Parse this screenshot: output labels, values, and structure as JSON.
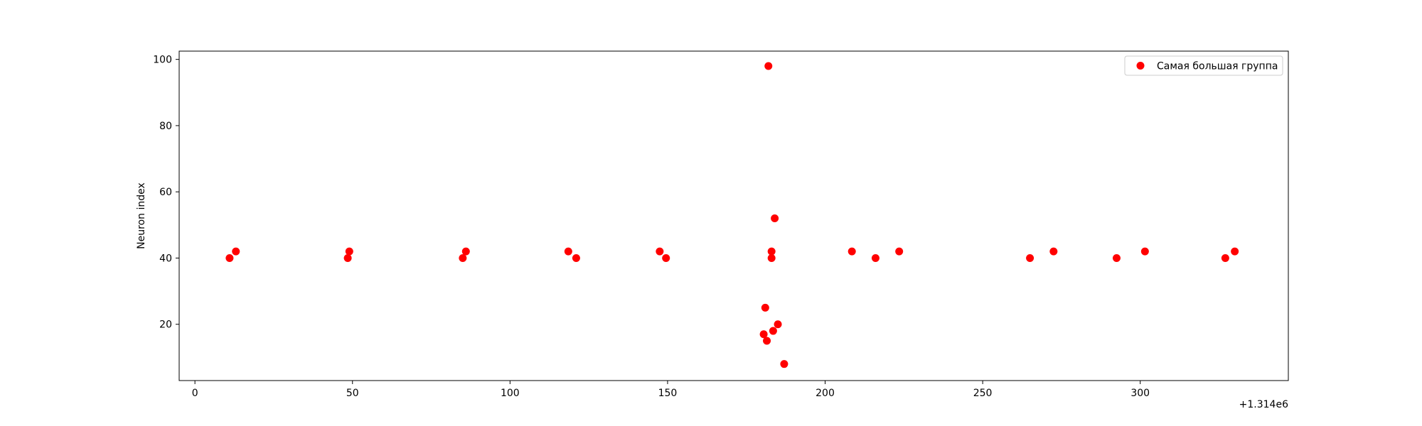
{
  "chart_data": {
    "type": "scatter",
    "title": "",
    "xlabel": "",
    "ylabel": "Neuron index",
    "x_offset_label": "+1.314e6",
    "xlim": [
      -5,
      347
    ],
    "ylim": [
      3,
      102.5
    ],
    "x_ticks": [
      0,
      50,
      100,
      150,
      200,
      250,
      300
    ],
    "y_ticks": [
      20,
      40,
      60,
      80,
      100
    ],
    "grid": false,
    "legend_position": "top-right",
    "series": [
      {
        "name": "Самая большая группа",
        "color": "#ff0000",
        "marker": "circle",
        "points": [
          {
            "x": 11,
            "y": 40
          },
          {
            "x": 13,
            "y": 42
          },
          {
            "x": 48.5,
            "y": 40
          },
          {
            "x": 49,
            "y": 42
          },
          {
            "x": 85,
            "y": 40
          },
          {
            "x": 86,
            "y": 42
          },
          {
            "x": 118.5,
            "y": 42
          },
          {
            "x": 121,
            "y": 40
          },
          {
            "x": 147.5,
            "y": 42
          },
          {
            "x": 149.5,
            "y": 40
          },
          {
            "x": 180.5,
            "y": 17
          },
          {
            "x": 181,
            "y": 25
          },
          {
            "x": 181.5,
            "y": 15
          },
          {
            "x": 182,
            "y": 98
          },
          {
            "x": 183,
            "y": 42
          },
          {
            "x": 183,
            "y": 40
          },
          {
            "x": 183.5,
            "y": 18
          },
          {
            "x": 184,
            "y": 52
          },
          {
            "x": 185,
            "y": 20
          },
          {
            "x": 187,
            "y": 8
          },
          {
            "x": 208.5,
            "y": 42
          },
          {
            "x": 216,
            "y": 40
          },
          {
            "x": 223.5,
            "y": 42
          },
          {
            "x": 265,
            "y": 40
          },
          {
            "x": 272.5,
            "y": 42
          },
          {
            "x": 292.5,
            "y": 40
          },
          {
            "x": 301.5,
            "y": 42
          },
          {
            "x": 327,
            "y": 40
          },
          {
            "x": 330,
            "y": 42
          }
        ]
      }
    ]
  }
}
